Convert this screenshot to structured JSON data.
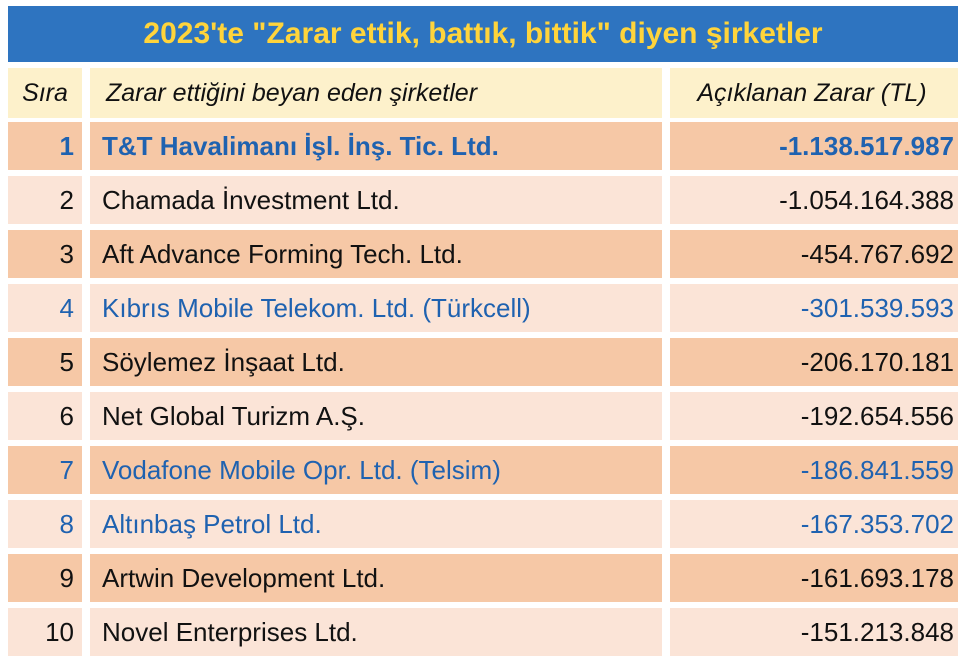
{
  "title": "2023'te \"Zarar ettik, battık, bittik\" diyen şirketler",
  "table": {
    "header": [
      "Sıra",
      "Zarar ettiğini beyan eden şirketler",
      "Açıklanan Zarar (TL)"
    ],
    "rows": [
      {
        "cells": [
          "1",
          "T&T Havalimanı İşl. İnş. Tic. Ltd.",
          "-1.138.517.987"
        ],
        "color": "#1f62b0",
        "bold": true
      },
      {
        "cells": [
          "2",
          "Chamada İnvestment Ltd.",
          "-1.054.164.388"
        ],
        "color": "#111111",
        "bold": false
      },
      {
        "cells": [
          "3",
          "Aft Advance Forming Tech. Ltd.",
          "-454.767.692"
        ],
        "color": "#111111",
        "bold": false
      },
      {
        "cells": [
          "4",
          "Kıbrıs Mobile Telekom. Ltd. (Türkcell)",
          "-301.539.593"
        ],
        "color": "#1f62b0",
        "bold": false
      },
      {
        "cells": [
          "5",
          "Söylemez İnşaat Ltd.",
          "-206.170.181"
        ],
        "color": "#111111",
        "bold": false
      },
      {
        "cells": [
          "6",
          "Net Global Turizm A.Ş.",
          "-192.654.556"
        ],
        "color": "#111111",
        "bold": false
      },
      {
        "cells": [
          "7",
          "Vodafone Mobile Opr. Ltd. (Telsim)",
          "-186.841.559"
        ],
        "color": "#1f62b0",
        "bold": false
      },
      {
        "cells": [
          "8",
          "Altınbaş Petrol Ltd.",
          "-167.353.702"
        ],
        "color": "#1f62b0",
        "bold": false
      },
      {
        "cells": [
          "9",
          "Artwin Development Ltd.",
          "-161.693.178"
        ],
        "color": "#111111",
        "bold": false
      },
      {
        "cells": [
          "10",
          "Novel Enterprises Ltd.",
          "-151.213.848"
        ],
        "color": "#111111",
        "bold": false
      }
    ]
  }
}
